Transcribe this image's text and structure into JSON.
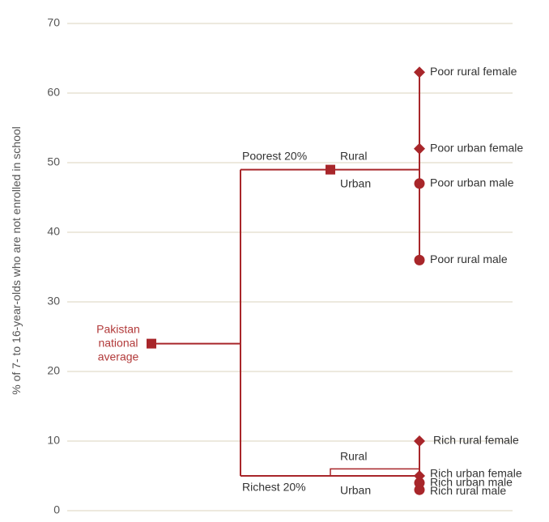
{
  "chart_data": {
    "type": "scatter",
    "ylabel": "% of 7- to 16-year-olds who are not enrolled in school",
    "ylim": [
      0,
      70
    ],
    "yticks": [
      "0",
      "10",
      "20",
      "30",
      "40",
      "50",
      "60",
      "70"
    ],
    "grid": true,
    "colors": {
      "accent": "#a8262a",
      "accent_light": "#b23a3a",
      "grid": "#e2dccb",
      "text": "#555555"
    },
    "national_average": {
      "label_lines": [
        "Pakistan",
        "national",
        "average"
      ],
      "value": 24
    },
    "groups": [
      {
        "label": "Poorest 20%",
        "value": 49,
        "rural_label": "Rural",
        "urban_label": "Urban",
        "rural_value": 49,
        "urban_value": 49
      },
      {
        "label": "Richest 20%",
        "value": 5,
        "rural_label": "Rural",
        "urban_label": "Urban",
        "rural_value": 6,
        "urban_value": 5
      }
    ],
    "points": [
      {
        "label": "Poor rural female",
        "value": 63,
        "marker": "diamond"
      },
      {
        "label": "Poor urban female",
        "value": 52,
        "marker": "diamond"
      },
      {
        "label": "Poor urban male",
        "value": 47,
        "marker": "circle"
      },
      {
        "label": "Poor rural male",
        "value": 36,
        "marker": "circle"
      },
      {
        "label": "Rich rural female",
        "value": 10,
        "marker": "diamond"
      },
      {
        "label": "Rich urban female",
        "value": 5,
        "marker": "diamond"
      },
      {
        "label": "Rich urban male",
        "value": 4,
        "marker": "circle"
      },
      {
        "label": "Rich rural male",
        "value": 3,
        "marker": "circle"
      }
    ]
  }
}
